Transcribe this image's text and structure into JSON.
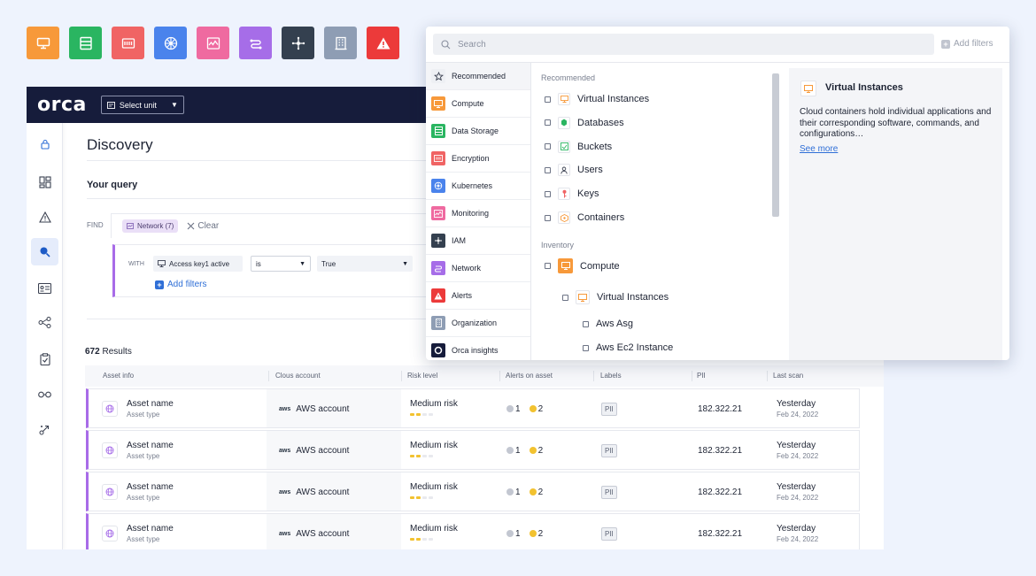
{
  "tiles": [
    {
      "icon": "monitor-icon",
      "color": "#f7993a"
    },
    {
      "icon": "database-icon",
      "color": "#2ab561"
    },
    {
      "icon": "encryption-icon",
      "color": "#f06464"
    },
    {
      "icon": "kubernetes-icon",
      "color": "#4a83ec"
    },
    {
      "icon": "monitoring-icon",
      "color": "#ef6aa0"
    },
    {
      "icon": "network-icon",
      "color": "#a66de8"
    },
    {
      "icon": "iam-icon",
      "color": "#34404f"
    },
    {
      "icon": "organization-icon",
      "color": "#8e9db4"
    },
    {
      "icon": "alert-icon",
      "color": "#ec3a3a"
    }
  ],
  "app": {
    "logo": "orca",
    "unit_select": "Select unit",
    "page_title": "Discovery",
    "query_label": "Your query",
    "find_label": "FIND",
    "chip": "Network (7)",
    "clear": "Clear",
    "with_label": "WITH",
    "condition": {
      "field": "Access key1 active",
      "operator": "is",
      "value": "True"
    },
    "add_filters": "Add filters",
    "results_count": "672",
    "results_label": "Results",
    "columns": [
      "Asset info",
      "Clous account",
      "Risk level",
      "Alerts on asset",
      "Labels",
      "PII",
      "Last scan"
    ],
    "rows": [
      {
        "name": "Asset name",
        "type": "Asset type",
        "account": "AWS account",
        "risk": "Medium risk",
        "alerts_grey": "1",
        "alerts_yellow": "2",
        "label": "PII",
        "pii": "182.322.21",
        "scan": "Yesterday",
        "scan_date": "Feb 24, 2022"
      },
      {
        "name": "Asset name",
        "type": "Asset type",
        "account": "AWS account",
        "risk": "Medium risk",
        "alerts_grey": "1",
        "alerts_yellow": "2",
        "label": "PII",
        "pii": "182.322.21",
        "scan": "Yesterday",
        "scan_date": "Feb 24, 2022"
      },
      {
        "name": "Asset name",
        "type": "Asset type",
        "account": "AWS account",
        "risk": "Medium risk",
        "alerts_grey": "1",
        "alerts_yellow": "2",
        "label": "PII",
        "pii": "182.322.21",
        "scan": "Yesterday",
        "scan_date": "Feb 24, 2022"
      },
      {
        "name": "Asset name",
        "type": "Asset type",
        "account": "AWS account",
        "risk": "Medium risk",
        "alerts_grey": "1",
        "alerts_yellow": "2",
        "label": "PII",
        "pii": "182.322.21",
        "scan": "Yesterday",
        "scan_date": "Feb 24, 2022"
      }
    ],
    "aws_logo": "aws"
  },
  "panel": {
    "search_placeholder": "Search",
    "add_filters": "Add filters",
    "categories": [
      {
        "label": "Recommended",
        "icon": "star-icon",
        "color": "#eef0f4"
      },
      {
        "label": "Compute",
        "icon": "monitor-icon",
        "color": "#f7993a"
      },
      {
        "label": "Data Storage",
        "icon": "database-icon",
        "color": "#2ab561"
      },
      {
        "label": "Encryption",
        "icon": "encryption-icon",
        "color": "#f06464"
      },
      {
        "label": "Kubernetes",
        "icon": "kubernetes-icon",
        "color": "#4a83ec"
      },
      {
        "label": "Monitoring",
        "icon": "monitoring-icon",
        "color": "#ef6aa0"
      },
      {
        "label": "IAM",
        "icon": "iam-icon",
        "color": "#34404f"
      },
      {
        "label": "Network",
        "icon": "network-icon",
        "color": "#a66de8"
      },
      {
        "label": "Alerts",
        "icon": "alert-icon",
        "color": "#ec3a3a"
      },
      {
        "label": "Organization",
        "icon": "organization-icon",
        "color": "#8e9db4"
      },
      {
        "label": "Orca insights",
        "icon": "orca-icon",
        "color": "#161c3b"
      }
    ],
    "recommended_title": "Recommended",
    "recommended": [
      {
        "label": "Virtual Instances",
        "icon": "monitor-icon"
      },
      {
        "label": "Databases",
        "icon": "database-icon"
      },
      {
        "label": "Buckets",
        "icon": "bucket-icon"
      },
      {
        "label": "Users",
        "icon": "user-icon"
      },
      {
        "label": "Keys",
        "icon": "key-icon"
      },
      {
        "label": "Containers",
        "icon": "container-icon"
      }
    ],
    "inventory_title": "Inventory",
    "inventory_compute": "Compute",
    "inventory_virtual": "Virtual Instances",
    "inventory_children": [
      "Aws Asg",
      "Aws Ec2 Instance"
    ],
    "detail_title": "Virtual Instances",
    "detail_desc": "Cloud containers hold individual applications and their corresponding software, commands, and configurations…",
    "see_more": "See more"
  }
}
